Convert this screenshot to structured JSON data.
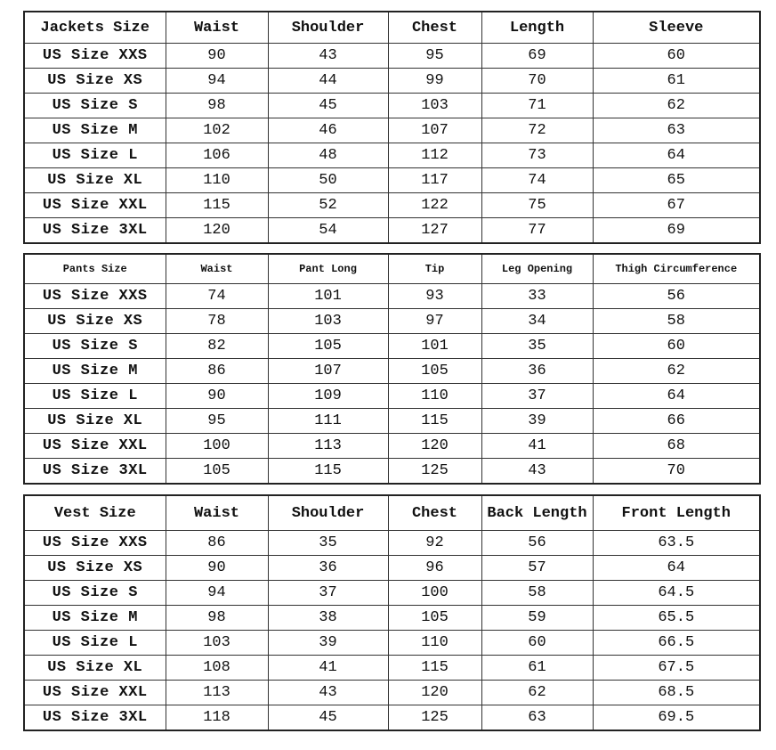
{
  "tables": [
    {
      "headers": [
        "Jackets Size",
        "Waist",
        "Shoulder",
        "Chest",
        "Length",
        "Sleeve"
      ],
      "rows": [
        [
          "US Size XXS",
          "90",
          "43",
          "95",
          "69",
          "60"
        ],
        [
          "US Size XS",
          "94",
          "44",
          "99",
          "70",
          "61"
        ],
        [
          "US Size S",
          "98",
          "45",
          "103",
          "71",
          "62"
        ],
        [
          "US Size M",
          "102",
          "46",
          "107",
          "72",
          "63"
        ],
        [
          "US Size L",
          "106",
          "48",
          "112",
          "73",
          "64"
        ],
        [
          "US Size XL",
          "110",
          "50",
          "117",
          "74",
          "65"
        ],
        [
          "US Size XXL",
          "115",
          "52",
          "122",
          "75",
          "67"
        ],
        [
          "US Size 3XL",
          "120",
          "54",
          "127",
          "77",
          "69"
        ]
      ]
    },
    {
      "headers": [
        "Pants Size",
        "Waist",
        "Pant Long",
        "Tip",
        "Leg Opening",
        "Thigh Circumference"
      ],
      "rows": [
        [
          "US Size XXS",
          "74",
          "101",
          "93",
          "33",
          "56"
        ],
        [
          "US Size XS",
          "78",
          "103",
          "97",
          "34",
          "58"
        ],
        [
          "US Size S",
          "82",
          "105",
          "101",
          "35",
          "60"
        ],
        [
          "US Size M",
          "86",
          "107",
          "105",
          "36",
          "62"
        ],
        [
          "US Size L",
          "90",
          "109",
          "110",
          "37",
          "64"
        ],
        [
          "US Size XL",
          "95",
          "111",
          "115",
          "39",
          "66"
        ],
        [
          "US Size XXL",
          "100",
          "113",
          "120",
          "41",
          "68"
        ],
        [
          "US Size 3XL",
          "105",
          "115",
          "125",
          "43",
          "70"
        ]
      ]
    },
    {
      "headers": [
        "Vest Size",
        "Waist",
        "Shoulder",
        "Chest",
        "Back Length",
        "Front Length"
      ],
      "rows": [
        [
          "US Size XXS",
          "86",
          "35",
          "92",
          "56",
          "63.5"
        ],
        [
          "US Size XS",
          "90",
          "36",
          "96",
          "57",
          "64"
        ],
        [
          "US Size S",
          "94",
          "37",
          "100",
          "58",
          "64.5"
        ],
        [
          "US Size M",
          "98",
          "38",
          "105",
          "59",
          "65.5"
        ],
        [
          "US Size L",
          "103",
          "39",
          "110",
          "60",
          "66.5"
        ],
        [
          "US Size XL",
          "108",
          "41",
          "115",
          "61",
          "67.5"
        ],
        [
          "US Size XXL",
          "113",
          "43",
          "120",
          "62",
          "68.5"
        ],
        [
          "US Size 3XL",
          "118",
          "45",
          "125",
          "63",
          "69.5"
        ]
      ]
    }
  ]
}
